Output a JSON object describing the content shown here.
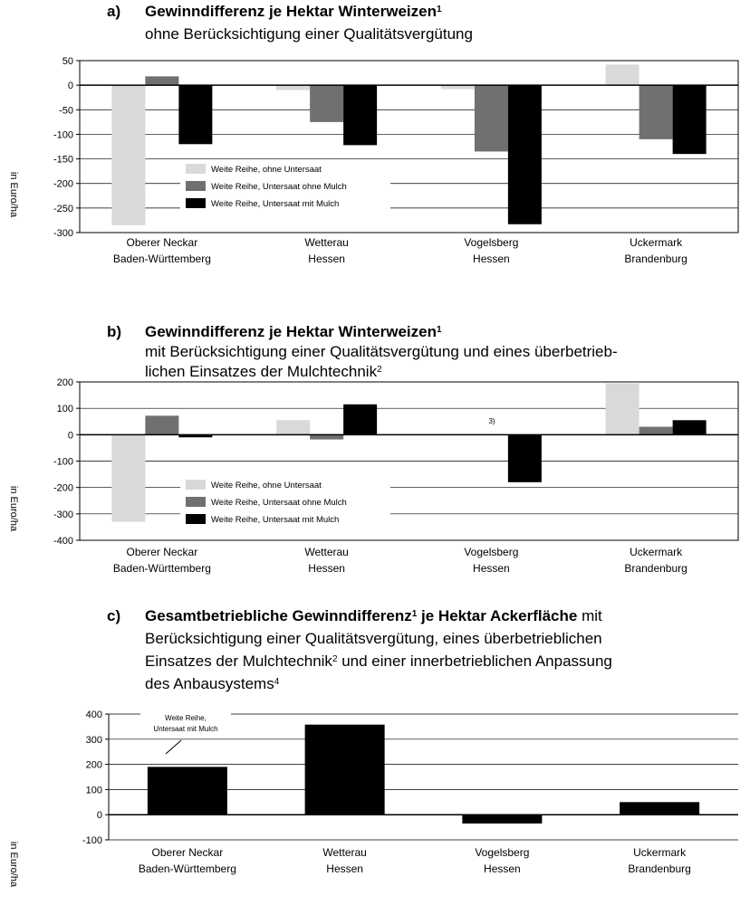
{
  "chart_data": [
    {
      "type": "bar",
      "label": "a)",
      "title_lines": [
        [
          {
            "text": "Gewinndifferenz je Hektar Winterweizen",
            "bold": true
          },
          {
            "text": "1",
            "bold": true,
            "sup": true
          }
        ],
        [
          {
            "text": "ohne Berücksichtigung einer Qualitätsvergütung"
          }
        ]
      ],
      "y_label": "in Euro/ha",
      "categories": [
        [
          "Oberer Neckar",
          "Baden-Württemberg"
        ],
        [
          "Wetterau",
          "Hessen"
        ],
        [
          "Vogelsberg",
          "Hessen"
        ],
        [
          "Uckermark",
          "Brandenburg"
        ]
      ],
      "series": [
        {
          "name": "Weite Reihe, ohne Untersaat",
          "color": "#d9d9d9",
          "values": [
            -285,
            -10,
            -8,
            42
          ]
        },
        {
          "name": "Weite Reihe, Untersaat ohne Mulch",
          "color": "#707070",
          "values": [
            18,
            -75,
            -135,
            -110
          ]
        },
        {
          "name": "Weite Reihe, Untersaat mit Mulch",
          "color": "#000000",
          "values": [
            -120,
            -122,
            -283,
            -140
          ]
        }
      ],
      "ylim": [
        -300,
        50
      ],
      "yticks": [
        -300,
        -250,
        -200,
        -150,
        -100,
        -50,
        0,
        50
      ],
      "grid": true,
      "frame": true,
      "legend": "lower left"
    },
    {
      "type": "bar",
      "label": "b)",
      "title_lines": [
        [
          {
            "text": "Gewinndifferenz je Hektar Winterweizen",
            "bold": true
          },
          {
            "text": "1",
            "bold": true,
            "sup": true
          }
        ],
        [
          {
            "text": "mit Berücksichtigung einer Qualitätsvergütung und eines überbetrieb-"
          }
        ],
        [
          {
            "text": "lichen Einsatzes der Mulchtechnik"
          },
          {
            "text": "2",
            "sup": true
          }
        ]
      ],
      "y_label": "in Euro/ha",
      "categories": [
        [
          "Oberer Neckar",
          "Baden-Württemberg"
        ],
        [
          "Wetterau",
          "Hessen"
        ],
        [
          "Vogelsberg",
          "Hessen"
        ],
        [
          "Uckermark",
          "Brandenburg"
        ]
      ],
      "series": [
        {
          "name": "Weite Reihe, ohne Untersaat",
          "color": "#d9d9d9",
          "values": [
            -330,
            55,
            null,
            195
          ]
        },
        {
          "name": "Weite Reihe, Untersaat ohne Mulch",
          "color": "#707070",
          "values": [
            72,
            -18,
            null,
            30
          ]
        },
        {
          "name": "Weite Reihe, Untersaat mit Mulch",
          "color": "#000000",
          "values": [
            -10,
            115,
            -180,
            55
          ]
        }
      ],
      "ylim": [
        -400,
        200
      ],
      "yticks": [
        -400,
        -300,
        -200,
        -100,
        0,
        100,
        200
      ],
      "grid": true,
      "frame": true,
      "legend": "lower left",
      "annotations": [
        {
          "lines": [
            "3)"
          ]
        }
      ]
    },
    {
      "type": "bar",
      "label": "c)",
      "title_lines": [
        [
          {
            "text": "Gesamtbetriebliche Gewinndifferenz",
            "bold": true
          },
          {
            "text": "1",
            "bold": true,
            "sup": true
          },
          {
            "text": " je Hektar Ackerfläche",
            "bold": true
          },
          {
            "text": " mit"
          }
        ],
        [
          {
            "text": "Berücksichtigung einer Qualitätsvergütung, eines überbetrieblichen"
          }
        ],
        [
          {
            "text": "Einsatzes der Mulchtechnik"
          },
          {
            "text": "2",
            "sup": true
          },
          {
            "text": " und einer innerbetrieblichen Anpassung"
          }
        ],
        [
          {
            "text": "des Anbausystems"
          },
          {
            "text": "4",
            "sup": true
          }
        ]
      ],
      "y_label": "in Euro/ha",
      "categories": [
        [
          "Oberer Neckar",
          "Baden-Württemberg"
        ],
        [
          "Wetterau",
          "Hessen"
        ],
        [
          "Vogelsberg",
          "Hessen"
        ],
        [
          "Uckermark",
          "Brandenburg"
        ]
      ],
      "series": [
        {
          "color": "#000000",
          "values": [
            190,
            358,
            -35,
            50
          ]
        }
      ],
      "ylim": [
        -100,
        400
      ],
      "yticks": [
        -100,
        0,
        100,
        200,
        300,
        400
      ],
      "grid": true,
      "frame": false,
      "annotations": [
        {
          "lines": [
            "Weite Reihe,",
            "Untersaat mit Mulch"
          ]
        }
      ]
    }
  ]
}
